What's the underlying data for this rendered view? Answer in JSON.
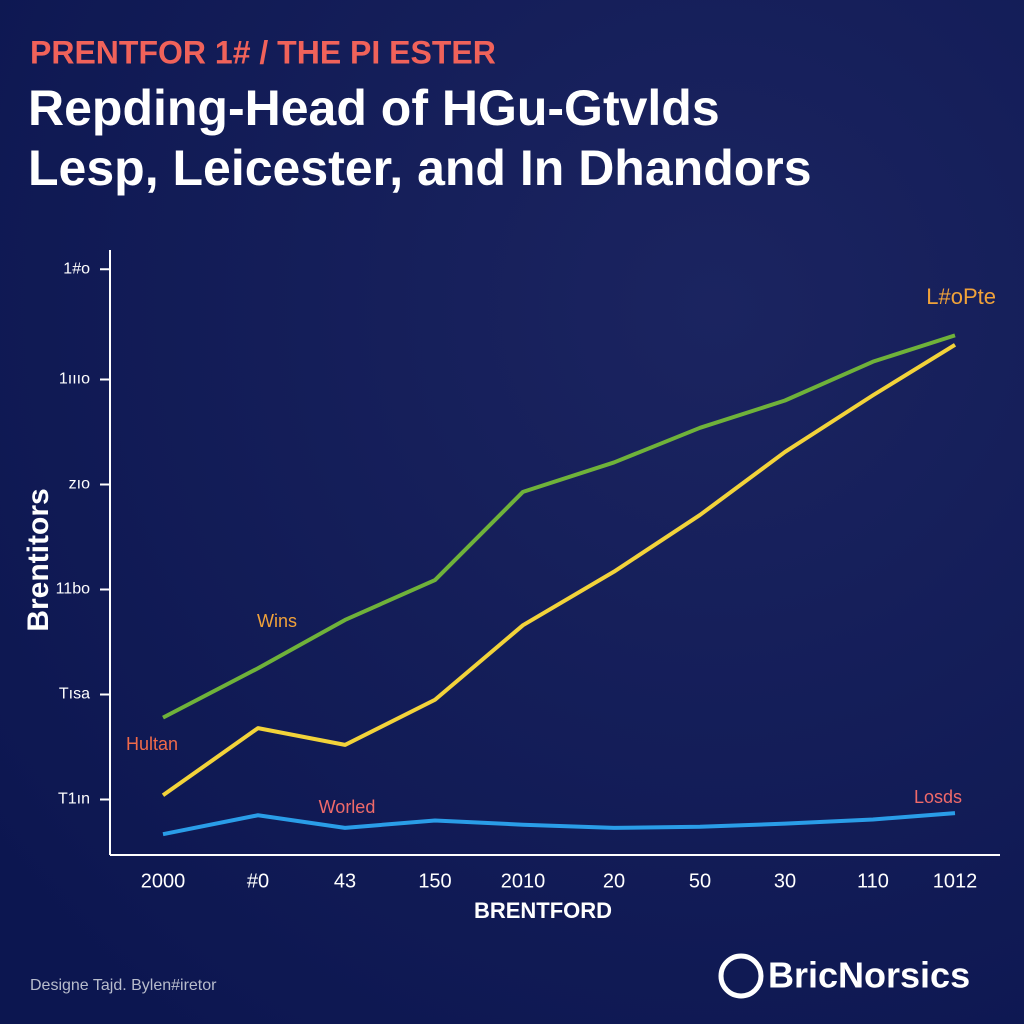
{
  "chart_data": {
    "type": "line",
    "supertitle": "PRENTFOR 1# / THE PI ESTER",
    "title": [
      "Repding-Head of HGu-Gtvlds",
      "Lesp, Leicester, and In Dhandors"
    ],
    "y_label": "Brentitors",
    "x_label": "BRENTFORD",
    "categories": [
      "2000",
      "#0",
      "43",
      "150",
      "2010",
      "20",
      "50",
      "30",
      "110",
      "1012"
    ],
    "series": [
      {
        "name": "Wins",
        "color": "#6fb23a",
        "label_color": "#f0a23a",
        "values": [
          128,
          175,
          221,
          259,
          343,
          371,
          404,
          430,
          467,
          492
        ]
      },
      {
        "name": "Hultan",
        "color": "#f2d33a",
        "label_color": "#f06a4a",
        "values": [
          54,
          118,
          102,
          145,
          216,
          267,
          321,
          381,
          435,
          483
        ]
      },
      {
        "name": "Losds",
        "color": "#2a9de8",
        "label_color": "#f06a6a",
        "values": [
          17,
          35,
          23,
          30,
          26,
          23,
          24,
          27,
          31,
          37
        ]
      }
    ],
    "annotations": [
      {
        "text": "L#oPte",
        "color": "#f0a23a"
      },
      {
        "text": "Worled",
        "color": "#f06a6a"
      }
    ],
    "ylim": [
      0,
      580
    ],
    "yticks": [
      {
        "value": 50,
        "label": "T1ın"
      },
      {
        "value": 150,
        "label": "Tısa"
      },
      {
        "value": 250,
        "label": "11bo"
      },
      {
        "value": 350,
        "label": "zıo"
      },
      {
        "value": 450,
        "label": "1ıııo"
      },
      {
        "value": 555,
        "label": "1#o"
      }
    ],
    "grid": false,
    "footer": "Designe Tajd. Bylen#iretor",
    "brand": "BricNorsics"
  }
}
